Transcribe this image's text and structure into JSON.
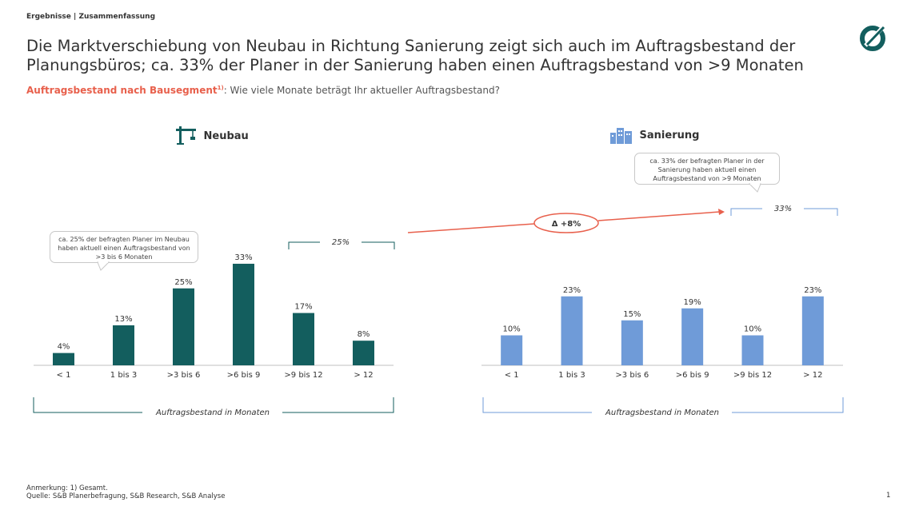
{
  "header": {
    "kicker": "Ergebnisse | Zusammenfassung",
    "title_line1": "Die Marktverschiebung von Neubau in Richtung Sanierung zeigt sich auch im Auftragsbestand der",
    "title_line2": "Planungsbüros; ca. 33% der Planer in der Sanierung haben einen Auftragsbestand von >9 Monaten",
    "subtitle_highlight": "Auftragsbestand nach Bausegment",
    "subtitle_sup": "1)",
    "subtitle_question": ": Wie viele Monate beträgt Ihr aktueller Auftragsbestand?"
  },
  "logo_icon": "circle-slash-logo-icon",
  "colors": {
    "neubau": "#135e5e",
    "sanierung": "#6f9bd8",
    "accent": "#e8604c",
    "axis": "#bfbfbf"
  },
  "panels": {
    "neubau": {
      "title": "Neubau",
      "icon": "crane-icon",
      "callout": "ca. 25% der befragten Planer im Neubau haben aktuell einen Auftragsbestand von >3 bis 6 Monaten",
      "bracket_label": "25%",
      "axis_caption": "Auftragsbestand  in Monaten"
    },
    "sanierung": {
      "title": "Sanierung",
      "icon": "buildings-icon",
      "callout": "ca. 33% der befragten Planer in der Sanierung haben aktuell einen Auftragsbestand von >9 Monaten",
      "bracket_label": "33%",
      "axis_caption": "Auftragsbestand  in Monaten"
    }
  },
  "delta_label": "Δ +8%",
  "chart_data": [
    {
      "type": "bar",
      "categories": [
        "< 1",
        "1 bis 3",
        ">3 bis  6",
        ">6 bis 9",
        ">9 bis 12",
        "> 12"
      ],
      "values": [
        4,
        13,
        25,
        33,
        17,
        8
      ],
      "labels": [
        "4%",
        "13%",
        "25%",
        "33%",
        "17%",
        "8%"
      ],
      "title": "Neubau",
      "xlabel": "Auftragsbestand  in Monaten",
      "ylabel": "",
      "ylim": [
        0,
        40
      ]
    },
    {
      "type": "bar",
      "categories": [
        "< 1",
        "1 bis 3",
        ">3 bis  6",
        ">6 bis 9",
        ">9 bis 12",
        "> 12"
      ],
      "values": [
        10,
        23,
        15,
        19,
        10,
        23
      ],
      "labels": [
        "10%",
        "23%",
        "15%",
        "19%",
        "10%",
        "23%"
      ],
      "title": "Sanierung",
      "xlabel": "Auftragsbestand  in Monaten",
      "ylabel": "",
      "ylim": [
        0,
        40
      ]
    }
  ],
  "footer": {
    "note": "Anmerkung: 1) Gesamt.",
    "source": "Quelle: S&B Planerbefragung, S&B Research, S&B Analyse",
    "page": "1"
  }
}
